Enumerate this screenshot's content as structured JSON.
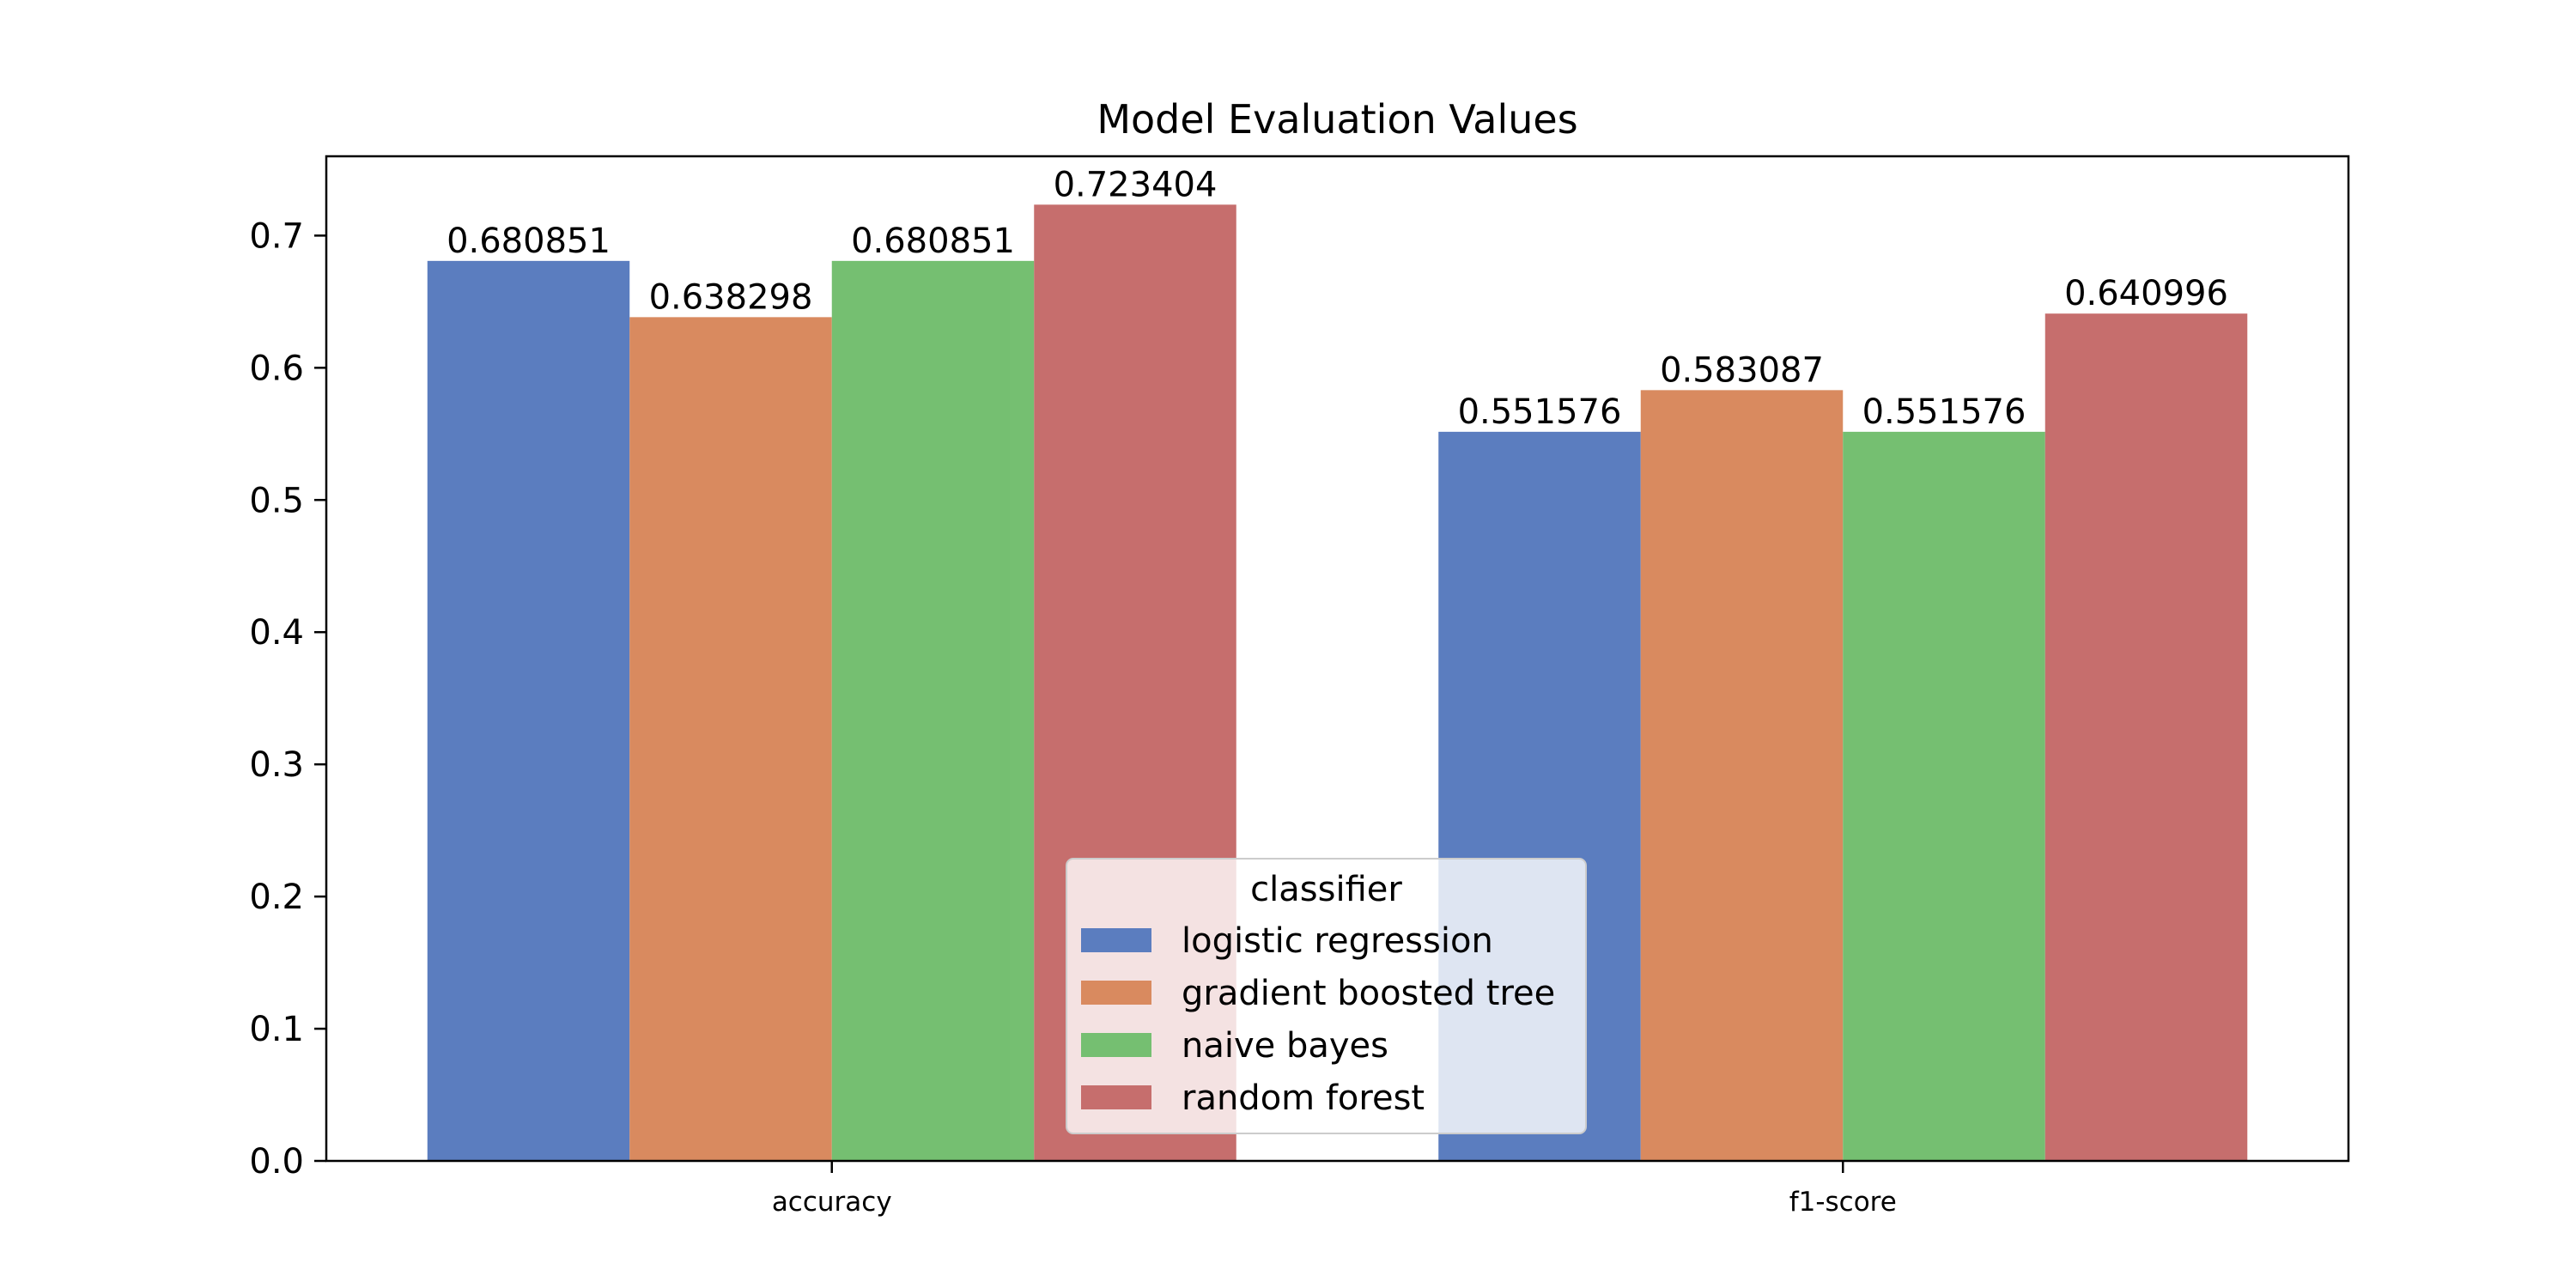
{
  "chart_data": {
    "type": "bar",
    "title": "Model Evaluation Values",
    "xlabel": "",
    "ylabel": "",
    "categories": [
      "accuracy",
      "f1-score"
    ],
    "ylim": [
      0,
      0.76
    ],
    "yticks": [
      0.0,
      0.1,
      0.2,
      0.3,
      0.4,
      0.5,
      0.6,
      0.7
    ],
    "ytick_labels": [
      "0.0",
      "0.1",
      "0.2",
      "0.3",
      "0.4",
      "0.5",
      "0.6",
      "0.7"
    ],
    "grid": false,
    "legend": {
      "title": "classifier",
      "position": "bottom-center"
    },
    "series": [
      {
        "name": "logistic regression",
        "color": "#5b7dbf",
        "values": [
          0.680851,
          0.551576
        ],
        "labels": [
          "0.680851",
          "0.551576"
        ]
      },
      {
        "name": "gradient boosted tree",
        "color": "#d98a5f",
        "values": [
          0.638298,
          0.583087
        ],
        "labels": [
          "0.638298",
          "0.583087"
        ]
      },
      {
        "name": "naive bayes",
        "color": "#75bf71",
        "values": [
          0.680851,
          0.551576
        ],
        "labels": [
          "0.680851",
          "0.551576"
        ]
      },
      {
        "name": "random forest",
        "color": "#c66e6d",
        "values": [
          0.723404,
          0.640996
        ],
        "labels": [
          "0.723404",
          "0.640996"
        ]
      }
    ]
  }
}
